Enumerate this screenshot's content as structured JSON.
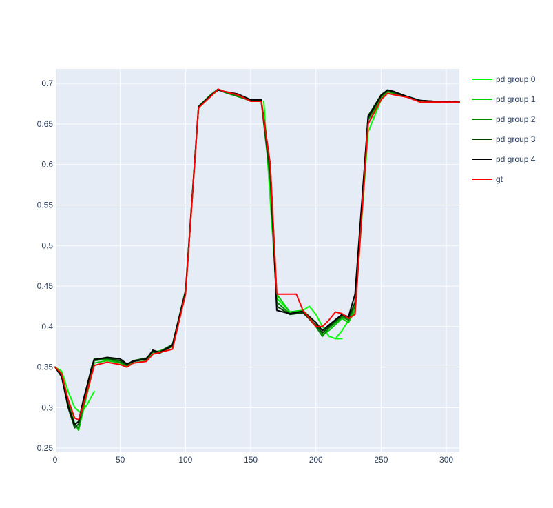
{
  "chart_data": {
    "type": "line",
    "title": "",
    "xlabel": "",
    "ylabel": "",
    "xlim": [
      0,
      310
    ],
    "ylim": [
      0.245,
      0.718
    ],
    "x_ticks": [
      0,
      50,
      100,
      150,
      200,
      250,
      300
    ],
    "y_ticks": [
      0.25,
      0.3,
      0.35,
      0.4,
      0.45,
      0.5,
      0.55,
      0.6,
      0.65,
      0.7
    ],
    "x_tick_labels": [
      "0",
      "50",
      "100",
      "150",
      "200",
      "250",
      "300"
    ],
    "y_tick_labels": [
      "0.25",
      "0.3",
      "0.35",
      "0.4",
      "0.45",
      "0.5",
      "0.55",
      "0.6",
      "0.65",
      "0.7"
    ],
    "grid": true,
    "background": "#e5ecf6",
    "legend_position": "right",
    "series": [
      {
        "name": "pd group 0",
        "color": "#00ff00",
        "segments": [
          {
            "x": [
              0,
              5,
              10,
              15,
              20,
              25,
              30
            ],
            "y": [
              0.35,
              0.345,
              0.32,
              0.3,
              0.293,
              0.305,
              0.32
            ]
          },
          {
            "x": [
              160,
              170,
              180,
              190,
              195,
              200,
              205,
              210,
              215,
              220
            ],
            "y": [
              0.678,
              0.435,
              0.418,
              0.42,
              0.425,
              0.415,
              0.4,
              0.388,
              0.385,
              0.385
            ]
          },
          {
            "x": [
              215,
              220,
              230,
              240,
              250,
              255,
              260,
              270,
              280,
              290,
              300,
              310
            ],
            "y": [
              0.385,
              0.395,
              0.42,
              0.64,
              0.68,
              0.688,
              0.687,
              0.684,
              0.678,
              0.678,
              0.678,
              0.677
            ]
          }
        ]
      },
      {
        "name": "pd group 1",
        "color": "#00cc00",
        "segments": [
          {
            "x": [
              0,
              5,
              10,
              15,
              18,
              22,
              28,
              30,
              40,
              50,
              55,
              60,
              70,
              75,
              80,
              90,
              100,
              110,
              120,
              125,
              130,
              140,
              150,
              158,
              165,
              170,
              180,
              190,
              200,
              205,
              210,
              220,
              225,
              230,
              240,
              250,
              255,
              260,
              270,
              280,
              290,
              300,
              310
            ],
            "y": [
              0.35,
              0.34,
              0.31,
              0.28,
              0.272,
              0.3,
              0.34,
              0.355,
              0.358,
              0.355,
              0.35,
              0.355,
              0.358,
              0.368,
              0.37,
              0.375,
              0.44,
              0.67,
              0.685,
              0.692,
              0.69,
              0.685,
              0.678,
              0.678,
              0.6,
              0.44,
              0.418,
              0.42,
              0.405,
              0.39,
              0.395,
              0.41,
              0.405,
              0.42,
              0.65,
              0.682,
              0.69,
              0.688,
              0.684,
              0.679,
              0.678,
              0.678,
              0.677
            ]
          }
        ]
      },
      {
        "name": "pd group 2",
        "color": "#008800",
        "segments": [
          {
            "x": [
              0,
              5,
              10,
              15,
              18,
              22,
              28,
              30,
              40,
              50,
              55,
              60,
              70,
              75,
              80,
              90,
              100,
              110,
              120,
              125,
              130,
              140,
              150,
              158,
              165,
              170,
              180,
              190,
              200,
              205,
              210,
              220,
              225,
              230,
              240,
              250,
              255,
              260,
              270,
              280,
              290,
              300,
              310
            ],
            "y": [
              0.35,
              0.34,
              0.305,
              0.278,
              0.275,
              0.305,
              0.345,
              0.358,
              0.36,
              0.356,
              0.352,
              0.357,
              0.36,
              0.37,
              0.369,
              0.378,
              0.445,
              0.672,
              0.687,
              0.693,
              0.689,
              0.684,
              0.679,
              0.679,
              0.58,
              0.43,
              0.416,
              0.418,
              0.4,
              0.388,
              0.398,
              0.412,
              0.408,
              0.425,
              0.655,
              0.684,
              0.691,
              0.688,
              0.683,
              0.679,
              0.678,
              0.678,
              0.677
            ]
          }
        ]
      },
      {
        "name": "pd group 3",
        "color": "#004400",
        "segments": [
          {
            "x": [
              0,
              5,
              10,
              15,
              18,
              22,
              28,
              30,
              40,
              50,
              55,
              60,
              70,
              75,
              80,
              90,
              100,
              110,
              120,
              125,
              130,
              140,
              150,
              158,
              165,
              170,
              180,
              190,
              200,
              205,
              210,
              220,
              225,
              230,
              240,
              250,
              255,
              260,
              270,
              280,
              290,
              300,
              310
            ],
            "y": [
              0.35,
              0.338,
              0.3,
              0.275,
              0.28,
              0.31,
              0.35,
              0.36,
              0.361,
              0.358,
              0.353,
              0.358,
              0.361,
              0.369,
              0.367,
              0.376,
              0.442,
              0.671,
              0.686,
              0.693,
              0.69,
              0.686,
              0.679,
              0.679,
              0.59,
              0.425,
              0.415,
              0.417,
              0.402,
              0.392,
              0.4,
              0.414,
              0.41,
              0.43,
              0.66,
              0.686,
              0.692,
              0.689,
              0.683,
              0.679,
              0.678,
              0.678,
              0.677
            ]
          }
        ]
      },
      {
        "name": "pd group 4",
        "color": "#000000",
        "segments": [
          {
            "x": [
              0,
              5,
              10,
              15,
              18,
              22,
              28,
              30,
              40,
              50,
              55,
              60,
              70,
              75,
              80,
              90,
              100,
              110,
              120,
              125,
              130,
              140,
              150,
              158,
              165,
              170,
              180,
              190,
              200,
              205,
              210,
              220,
              225,
              230,
              240,
              250,
              255,
              260,
              270,
              280,
              290,
              300,
              310
            ],
            "y": [
              0.35,
              0.339,
              0.302,
              0.279,
              0.283,
              0.312,
              0.348,
              0.359,
              0.362,
              0.36,
              0.354,
              0.357,
              0.36,
              0.371,
              0.368,
              0.377,
              0.443,
              0.671,
              0.686,
              0.692,
              0.69,
              0.687,
              0.68,
              0.68,
              0.6,
              0.42,
              0.416,
              0.419,
              0.405,
              0.395,
              0.402,
              0.415,
              0.412,
              0.44,
              0.658,
              0.685,
              0.692,
              0.69,
              0.684,
              0.679,
              0.678,
              0.678,
              0.677
            ]
          }
        ]
      },
      {
        "name": "gt",
        "color": "#ff0000",
        "segments": [
          {
            "x": [
              0,
              5,
              10,
              15,
              18,
              22,
              28,
              30,
              40,
              50,
              55,
              60,
              70,
              75,
              80,
              90,
              100,
              110,
              120,
              125,
              130,
              140,
              150,
              158,
              165,
              170,
              180,
              185,
              190,
              200,
              205,
              210,
              215,
              220,
              225,
              230,
              240,
              250,
              255,
              260,
              270,
              280,
              290,
              300,
              310
            ],
            "y": [
              0.35,
              0.342,
              0.31,
              0.287,
              0.285,
              0.305,
              0.34,
              0.352,
              0.356,
              0.353,
              0.35,
              0.355,
              0.357,
              0.366,
              0.368,
              0.372,
              0.44,
              0.67,
              0.685,
              0.693,
              0.69,
              0.686,
              0.678,
              0.678,
              0.6,
              0.44,
              0.44,
              0.44,
              0.42,
              0.4,
              0.4,
              0.408,
              0.418,
              0.416,
              0.41,
              0.415,
              0.65,
              0.68,
              0.688,
              0.686,
              0.683,
              0.677,
              0.677,
              0.677,
              0.677
            ]
          }
        ]
      }
    ]
  }
}
